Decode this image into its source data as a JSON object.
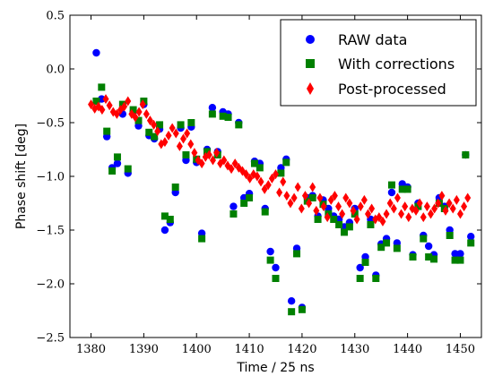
{
  "chart_data": {
    "type": "scatter",
    "title": "",
    "xlabel": "Time / 25 ns",
    "ylabel": "Phase shift [deg]",
    "xlim": [
      1376,
      1454
    ],
    "ylim": [
      -2.5,
      0.5
    ],
    "xticks": [
      1380,
      1390,
      1400,
      1410,
      1420,
      1430,
      1440,
      1450
    ],
    "yticks": [
      0.5,
      0.0,
      -0.5,
      -1.0,
      -1.5,
      -2.0,
      -2.5
    ],
    "ytick_labels": [
      "0.5",
      "0.0",
      "−0.5",
      "−1.0",
      "−1.5",
      "−2.0",
      "−2.5"
    ],
    "grid": false,
    "legend_position": "top-right",
    "series": [
      {
        "name": "RAW data",
        "marker": "circle",
        "color": "#0000ff",
        "x": [
          1381,
          1382,
          1383,
          1384,
          1385,
          1386,
          1387,
          1388,
          1389,
          1390,
          1391,
          1392,
          1393,
          1394,
          1395,
          1396,
          1397,
          1398,
          1399,
          1400,
          1401,
          1402,
          1403,
          1404,
          1405,
          1406,
          1407,
          1408,
          1409,
          1410,
          1411,
          1412,
          1413,
          1414,
          1415,
          1416,
          1417,
          1418,
          1419,
          1420,
          1421,
          1422,
          1423,
          1424,
          1425,
          1426,
          1427,
          1428,
          1429,
          1430,
          1431,
          1432,
          1433,
          1434,
          1435,
          1436,
          1437,
          1438,
          1439,
          1440,
          1441,
          1442,
          1443,
          1444,
          1445,
          1446,
          1447,
          1448,
          1449,
          1450,
          1451,
          1452
        ],
        "y": [
          0.15,
          -0.28,
          -0.63,
          -0.92,
          -0.88,
          -0.42,
          -0.97,
          -0.4,
          -0.53,
          -0.33,
          -0.62,
          -0.65,
          -0.56,
          -1.5,
          -1.43,
          -1.15,
          -0.55,
          -0.85,
          -0.54,
          -0.87,
          -1.53,
          -0.75,
          -0.36,
          -0.77,
          -0.4,
          -0.42,
          -1.28,
          -0.5,
          -1.2,
          -1.16,
          -0.86,
          -0.88,
          -1.3,
          -1.7,
          -1.85,
          -0.92,
          -0.84,
          -2.16,
          -1.67,
          -2.22,
          -1.2,
          -1.18,
          -1.37,
          -1.22,
          -1.3,
          -1.37,
          -1.4,
          -1.47,
          -1.43,
          -1.3,
          -1.85,
          -1.75,
          -1.4,
          -1.92,
          -1.63,
          -1.58,
          -1.15,
          -1.62,
          -1.07,
          -1.1,
          -1.73,
          -1.25,
          -1.55,
          -1.65,
          -1.73,
          -1.2,
          -1.28,
          -1.5,
          -1.72,
          -1.72,
          -0.8,
          -1.56
        ]
      },
      {
        "name": "With corrections",
        "marker": "square",
        "color": "#008000",
        "x": [
          1381,
          1382,
          1383,
          1384,
          1385,
          1386,
          1387,
          1388,
          1389,
          1390,
          1391,
          1392,
          1393,
          1394,
          1395,
          1396,
          1397,
          1398,
          1399,
          1400,
          1401,
          1402,
          1403,
          1404,
          1405,
          1406,
          1407,
          1408,
          1409,
          1410,
          1411,
          1412,
          1413,
          1414,
          1415,
          1416,
          1417,
          1418,
          1419,
          1420,
          1421,
          1422,
          1423,
          1424,
          1425,
          1426,
          1427,
          1428,
          1429,
          1430,
          1431,
          1432,
          1433,
          1434,
          1435,
          1436,
          1437,
          1438,
          1439,
          1440,
          1441,
          1442,
          1443,
          1444,
          1445,
          1446,
          1447,
          1448,
          1449,
          1450,
          1451,
          1452
        ],
        "y": [
          -0.3,
          -0.17,
          -0.58,
          -0.95,
          -0.82,
          -0.33,
          -0.93,
          -0.38,
          -0.48,
          -0.3,
          -0.59,
          -0.63,
          -0.52,
          -1.37,
          -1.4,
          -1.1,
          -0.52,
          -0.8,
          -0.5,
          -0.84,
          -1.58,
          -0.77,
          -0.42,
          -0.8,
          -0.44,
          -0.45,
          -1.35,
          -0.52,
          -1.25,
          -1.2,
          -0.88,
          -0.92,
          -1.33,
          -1.78,
          -1.95,
          -0.97,
          -0.87,
          -2.26,
          -1.72,
          -2.24,
          -1.23,
          -1.2,
          -1.4,
          -1.26,
          -1.35,
          -1.4,
          -1.45,
          -1.52,
          -1.47,
          -1.35,
          -1.95,
          -1.8,
          -1.45,
          -1.95,
          -1.66,
          -1.62,
          -1.08,
          -1.67,
          -1.12,
          -1.12,
          -1.75,
          -1.28,
          -1.58,
          -1.75,
          -1.77,
          -1.25,
          -1.3,
          -1.55,
          -1.78,
          -1.78,
          -0.8,
          -1.62
        ]
      },
      {
        "name": "Post-processed",
        "marker": "diamond",
        "color": "#ff0000",
        "x": [
          1380,
          1380.7,
          1381.4,
          1382.1,
          1382.8,
          1383.5,
          1384.2,
          1384.9,
          1385.6,
          1386.3,
          1387,
          1387.7,
          1388.4,
          1389.1,
          1389.8,
          1390.5,
          1391.2,
          1391.9,
          1392.6,
          1393.3,
          1394,
          1394.7,
          1395.4,
          1396.1,
          1396.8,
          1397.5,
          1398.2,
          1398.9,
          1399.6,
          1400.3,
          1401,
          1401.7,
          1402.4,
          1403.1,
          1403.8,
          1404.5,
          1405.2,
          1405.9,
          1406.6,
          1407.3,
          1408,
          1408.7,
          1409.4,
          1410.1,
          1410.8,
          1411.5,
          1412.2,
          1412.9,
          1413.6,
          1414.3,
          1415,
          1415.7,
          1416.4,
          1417.1,
          1417.8,
          1418.5,
          1419.2,
          1419.9,
          1420.6,
          1421.3,
          1422,
          1422.7,
          1423.4,
          1424.1,
          1424.8,
          1425.5,
          1426.2,
          1426.9,
          1427.6,
          1428.3,
          1429,
          1429.7,
          1430.4,
          1431.1,
          1431.8,
          1432.5,
          1433.2,
          1433.9,
          1434.6,
          1435.3,
          1436,
          1436.7,
          1437.4,
          1438.1,
          1438.8,
          1439.5,
          1440.2,
          1440.9,
          1441.6,
          1442.3,
          1443,
          1443.7,
          1444.4,
          1445.1,
          1445.8,
          1446.5,
          1447.2,
          1447.9,
          1448.6,
          1449.3,
          1450,
          1450.7,
          1451.4
        ],
        "y": [
          -0.33,
          -0.37,
          -0.35,
          -0.38,
          -0.28,
          -0.34,
          -0.4,
          -0.42,
          -0.38,
          -0.35,
          -0.3,
          -0.42,
          -0.45,
          -0.4,
          -0.33,
          -0.42,
          -0.48,
          -0.52,
          -0.58,
          -0.7,
          -0.68,
          -0.62,
          -0.55,
          -0.6,
          -0.72,
          -0.65,
          -0.6,
          -0.7,
          -0.78,
          -0.85,
          -0.88,
          -0.82,
          -0.8,
          -0.85,
          -0.78,
          -0.88,
          -0.85,
          -0.9,
          -0.93,
          -0.88,
          -0.92,
          -0.95,
          -0.98,
          -1.02,
          -0.98,
          -1.0,
          -1.05,
          -1.12,
          -1.08,
          -1.02,
          -0.98,
          -1.15,
          -1.05,
          -1.18,
          -1.25,
          -1.2,
          -1.1,
          -1.3,
          -1.18,
          -1.25,
          -1.1,
          -1.32,
          -1.2,
          -1.28,
          -1.38,
          -1.22,
          -1.18,
          -1.28,
          -1.35,
          -1.2,
          -1.25,
          -1.32,
          -1.4,
          -1.28,
          -1.22,
          -1.35,
          -1.3,
          -1.4,
          -1.38,
          -1.42,
          -1.35,
          -1.25,
          -1.3,
          -1.2,
          -1.35,
          -1.28,
          -1.38,
          -1.3,
          -1.32,
          -1.25,
          -1.38,
          -1.28,
          -1.35,
          -1.3,
          -1.25,
          -1.18,
          -1.32,
          -1.25,
          -1.3,
          -1.22,
          -1.35,
          -1.28,
          -1.2
        ]
      }
    ]
  }
}
